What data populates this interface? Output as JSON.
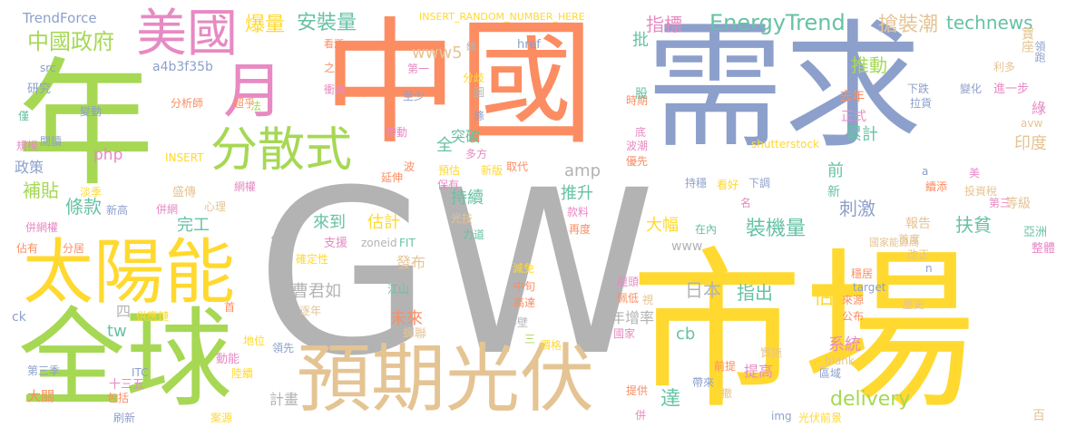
{
  "palette": {
    "green": "#a6d854",
    "orange": "#fc8d62",
    "blue": "#8da0cb",
    "yellow": "#ffd92f",
    "pink": "#e78ac3",
    "tan": "#e5c494",
    "teal": "#66c2a5",
    "gray": "#b3b3b3"
  },
  "words": [
    {
      "text": "GW",
      "color": "gray"
    },
    {
      "text": "需求",
      "color": "blue"
    },
    {
      "text": "中國",
      "color": "orange"
    },
    {
      "text": "市場",
      "color": "yellow"
    },
    {
      "text": "年",
      "color": "green"
    },
    {
      "text": "全球",
      "color": "green"
    },
    {
      "text": "太陽能",
      "color": "yellow"
    },
    {
      "text": "預期光伏",
      "color": "tan"
    },
    {
      "text": "美國",
      "color": "pink"
    },
    {
      "text": "月",
      "color": "pink"
    },
    {
      "text": "分散式",
      "color": "green"
    },
    {
      "text": "中國政府",
      "color": "green"
    },
    {
      "text": "TrendForce",
      "color": "blue"
    },
    {
      "text": "a4b3f35b",
      "color": "blue"
    },
    {
      "text": "爆量",
      "color": "yellow"
    },
    {
      "text": "安裝量",
      "color": "teal"
    },
    {
      "text": "www5",
      "color": "tan"
    },
    {
      "text": "INSERT_RANDOM_NUMBER_HERE",
      "color": "yellow"
    },
    {
      "text": "指標",
      "color": "pink"
    },
    {
      "text": "EnergyTrend",
      "color": "teal"
    },
    {
      "text": "搶裝潮",
      "color": "tan"
    },
    {
      "text": "technews",
      "color": "teal"
    },
    {
      "text": "推動",
      "color": "green"
    },
    {
      "text": "寶座",
      "color": "tan"
    },
    {
      "text": "利多",
      "color": "tan"
    },
    {
      "text": "領跑",
      "color": "blue"
    },
    {
      "text": "進一步",
      "color": "pink"
    },
    {
      "text": "變化",
      "color": "blue"
    },
    {
      "text": "下跌",
      "color": "blue"
    },
    {
      "text": "拉貨",
      "color": "blue"
    },
    {
      "text": "綠",
      "color": "pink"
    },
    {
      "text": "avw",
      "color": "tan"
    },
    {
      "text": "正式",
      "color": "pink"
    },
    {
      "text": "去年",
      "color": "orange"
    },
    {
      "text": "累計",
      "color": "teal"
    },
    {
      "text": "印度",
      "color": "tan"
    },
    {
      "text": "刺激",
      "color": "blue"
    },
    {
      "text": "扶貧",
      "color": "teal"
    },
    {
      "text": "等級",
      "color": "tan"
    },
    {
      "text": "亞洲",
      "color": "teal"
    },
    {
      "text": "首度",
      "color": "tan"
    },
    {
      "text": "改正",
      "color": "tan"
    },
    {
      "text": "整體",
      "color": "pink"
    },
    {
      "text": "報告",
      "color": "tan"
    },
    {
      "text": "國家能源局",
      "color": "tan"
    },
    {
      "text": "穩居",
      "color": "orange"
    },
    {
      "text": "歷史",
      "color": "tan"
    },
    {
      "text": "來源",
      "color": "orange"
    },
    {
      "text": "公布",
      "color": "orange"
    },
    {
      "text": "target",
      "color": "blue"
    },
    {
      "text": "百",
      "color": "tan"
    },
    {
      "text": "投資稅",
      "color": "tan"
    },
    {
      "text": "美",
      "color": "pink"
    },
    {
      "text": "第三",
      "color": "pink"
    },
    {
      "text": "續添",
      "color": "orange"
    },
    {
      "text": "新",
      "color": "teal"
    },
    {
      "text": "前",
      "color": "teal"
    },
    {
      "text": "名",
      "color": "pink"
    },
    {
      "text": "看好",
      "color": "yellow"
    },
    {
      "text": "下調",
      "color": "blue"
    },
    {
      "text": "持穩",
      "color": "blue"
    },
    {
      "text": "shutterstock",
      "color": "yellow"
    },
    {
      "text": "a",
      "color": "blue"
    },
    {
      "text": "n",
      "color": "blue"
    },
    {
      "text": "首",
      "color": "orange"
    },
    {
      "text": "研究",
      "color": "blue"
    },
    {
      "text": "僅",
      "color": "teal"
    },
    {
      "text": "規模",
      "color": "pink"
    },
    {
      "text": "閱讀",
      "color": "blue"
    },
    {
      "text": "變動",
      "color": "blue"
    },
    {
      "text": "src",
      "color": "blue"
    },
    {
      "text": "政策",
      "color": "blue"
    },
    {
      "text": "補貼",
      "color": "green"
    },
    {
      "text": "條款",
      "color": "teal"
    },
    {
      "text": "淡季",
      "color": "yellow"
    },
    {
      "text": "新高",
      "color": "blue"
    },
    {
      "text": "盛傳",
      "color": "tan"
    },
    {
      "text": "心理",
      "color": "tan"
    },
    {
      "text": "併網",
      "color": "pink"
    },
    {
      "text": "併網權",
      "color": "pink"
    },
    {
      "text": "佔有",
      "color": "orange"
    },
    {
      "text": "分居",
      "color": "orange"
    },
    {
      "text": "完工",
      "color": "teal"
    },
    {
      "text": "約",
      "color": "gray"
    },
    {
      "text": "ck",
      "color": "blue"
    },
    {
      "text": "供應鏈",
      "color": "yellow"
    },
    {
      "text": "四",
      "color": "gray"
    },
    {
      "text": "tw",
      "color": "teal"
    },
    {
      "text": "第三季",
      "color": "blue"
    },
    {
      "text": "十三五",
      "color": "pink"
    },
    {
      "text": "大關",
      "color": "orange"
    },
    {
      "text": "包括",
      "color": "orange"
    },
    {
      "text": "刷新",
      "color": "blue"
    },
    {
      "text": "案源",
      "color": "yellow"
    },
    {
      "text": "ITC",
      "color": "blue"
    },
    {
      "text": "陸續",
      "color": "yellow"
    },
    {
      "text": "動能",
      "color": "pink"
    },
    {
      "text": "地位",
      "color": "yellow"
    },
    {
      "text": "領先",
      "color": "blue"
    },
    {
      "text": "php",
      "color": "pink"
    },
    {
      "text": "INSERT",
      "color": "yellow"
    },
    {
      "text": "網權",
      "color": "pink"
    },
    {
      "text": "超乎",
      "color": "orange"
    },
    {
      "text": "分析師",
      "color": "orange"
    },
    {
      "text": "法",
      "color": "green"
    },
    {
      "text": "之間",
      "color": "orange"
    },
    {
      "text": "看漲",
      "color": "orange"
    },
    {
      "text": "衝高",
      "color": "pink"
    },
    {
      "text": "減",
      "color": "orange"
    },
    {
      "text": "至少",
      "color": "blue"
    },
    {
      "text": "第一",
      "color": "pink"
    },
    {
      "text": "分歧",
      "color": "yellow"
    },
    {
      "text": "總",
      "color": "gray"
    },
    {
      "text": "圖",
      "color": "gray"
    },
    {
      "text": "href",
      "color": "blue"
    },
    {
      "text": "條",
      "color": "blue"
    },
    {
      "text": "帶動",
      "color": "pink"
    },
    {
      "text": "突破",
      "color": "teal"
    },
    {
      "text": "多方",
      "color": "pink"
    },
    {
      "text": "全",
      "color": "teal"
    },
    {
      "text": "波",
      "color": "orange"
    },
    {
      "text": "預估",
      "color": "yellow"
    },
    {
      "text": "新版",
      "color": "yellow"
    },
    {
      "text": "取代",
      "color": "orange"
    },
    {
      "text": "保有",
      "color": "pink"
    },
    {
      "text": "延伸",
      "color": "orange"
    },
    {
      "text": "持續",
      "color": "teal"
    },
    {
      "text": "amp",
      "color": "gray"
    },
    {
      "text": "推升",
      "color": "teal"
    },
    {
      "text": "來到",
      "color": "teal"
    },
    {
      "text": "估計",
      "color": "yellow"
    },
    {
      "text": "光伏前景",
      "color": "yellow"
    },
    {
      "text": "時期",
      "color": "orange"
    },
    {
      "text": "股",
      "color": "teal"
    },
    {
      "text": "底",
      "color": "pink"
    },
    {
      "text": "波潮",
      "color": "pink"
    },
    {
      "text": "優先",
      "color": "orange"
    },
    {
      "text": "批",
      "color": "teal"
    },
    {
      "text": "大幅",
      "color": "yellow"
    },
    {
      "text": "裝機量",
      "color": "teal"
    },
    {
      "text": "www",
      "color": "gray"
    },
    {
      "text": "在內",
      "color": "teal"
    },
    {
      "text": "款料",
      "color": "pink"
    },
    {
      "text": "再度",
      "color": "orange"
    },
    {
      "text": "力道",
      "color": "teal"
    },
    {
      "text": "支援",
      "color": "pink"
    },
    {
      "text": "zoneid",
      "color": "gray"
    },
    {
      "text": "FIT",
      "color": "teal"
    },
    {
      "text": "確定性",
      "color": "yellow"
    },
    {
      "text": "光技",
      "color": "tan"
    },
    {
      "text": "曹君如",
      "color": "gray"
    },
    {
      "text": "發布",
      "color": "tan"
    },
    {
      "text": "江山",
      "color": "teal"
    },
    {
      "text": "逐年",
      "color": "tan"
    },
    {
      "text": "未來",
      "color": "orange"
    },
    {
      "text": "日本",
      "color": "gray"
    },
    {
      "text": "指出",
      "color": "teal"
    },
    {
      "text": "估",
      "color": "yellow"
    },
    {
      "text": "年增率",
      "color": "gray"
    },
    {
      "text": "減免",
      "color": "yellow"
    },
    {
      "text": "中旬",
      "color": "orange"
    },
    {
      "text": "高達",
      "color": "orange"
    },
    {
      "text": "半壁",
      "color": "gray"
    },
    {
      "text": "蟬聯",
      "color": "tan"
    },
    {
      "text": "三",
      "color": "green"
    },
    {
      "text": "價格",
      "color": "yellow"
    },
    {
      "text": "龍頭",
      "color": "pink"
    },
    {
      "text": "佩低",
      "color": "orange"
    },
    {
      "text": "視",
      "color": "tan"
    },
    {
      "text": "國家",
      "color": "pink"
    },
    {
      "text": "cb",
      "color": "teal"
    },
    {
      "text": "系統",
      "color": "pink"
    },
    {
      "text": "提高",
      "color": "pink"
    },
    {
      "text": "實施",
      "color": "tan"
    },
    {
      "text": "區域",
      "color": "blue"
    },
    {
      "text": "_blank",
      "color": "tan"
    },
    {
      "text": "前提",
      "color": "orange"
    },
    {
      "text": "撤",
      "color": "tan"
    },
    {
      "text": "帶來",
      "color": "blue"
    },
    {
      "text": "達",
      "color": "teal"
    },
    {
      "text": "delivery",
      "color": "green"
    },
    {
      "text": "計畫",
      "color": "gray"
    },
    {
      "text": "img",
      "color": "blue"
    },
    {
      "text": "提供",
      "color": "orange"
    },
    {
      "text": "併",
      "color": "pink"
    }
  ]
}
